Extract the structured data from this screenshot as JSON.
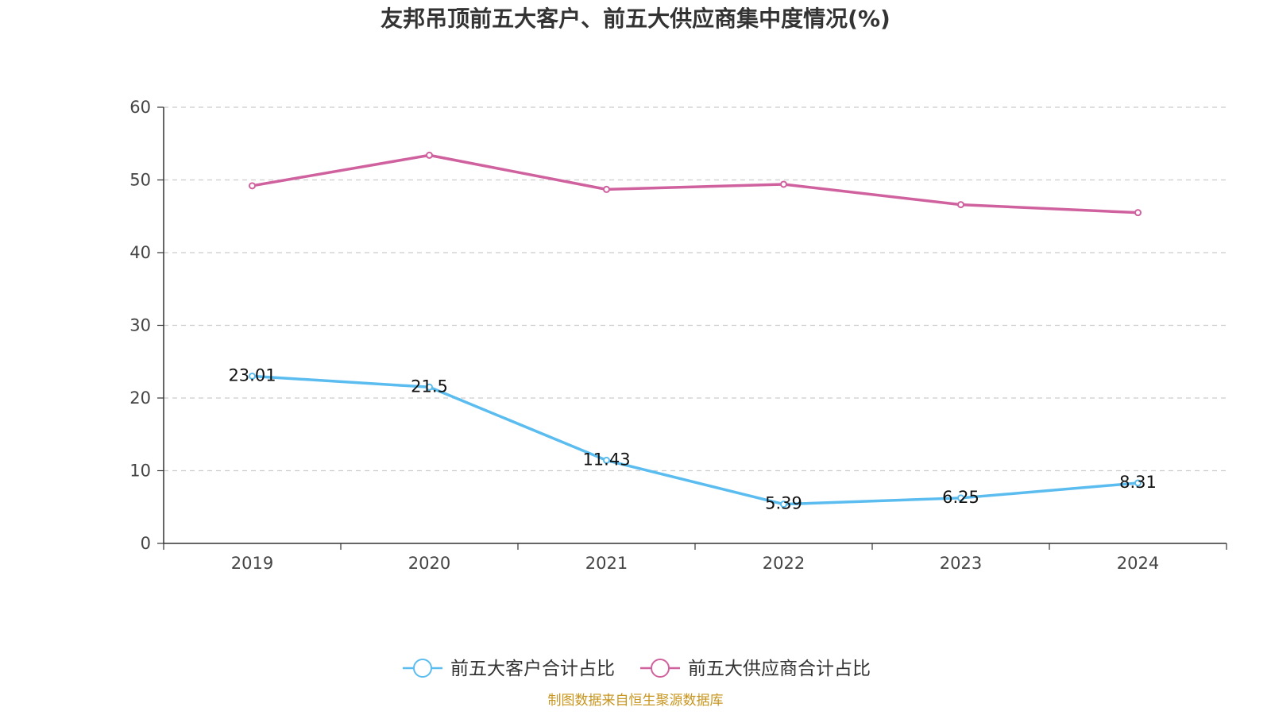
{
  "chart_data": {
    "type": "line",
    "title": "友邦吊顶前五大客户、前五大供应商集中度情况(%)",
    "categories": [
      "2019",
      "2020",
      "2021",
      "2022",
      "2023",
      "2024"
    ],
    "ylim": [
      0,
      60
    ],
    "yticks": [
      0,
      10,
      20,
      30,
      40,
      50,
      60
    ],
    "grid": true,
    "legend_position": "bottom",
    "series": [
      {
        "name": "前五大客户合计占比",
        "color": "#5bbcf0",
        "values": [
          23.01,
          21.5,
          11.43,
          5.39,
          6.25,
          8.31
        ],
        "labels": [
          "23.01",
          "21.5",
          "11.43",
          "5.39",
          "6.25",
          "8.31"
        ],
        "show_labels": true
      },
      {
        "name": "前五大供应商合计占比",
        "color": "#d0619f",
        "values": [
          49.2,
          53.4,
          48.7,
          49.4,
          46.6,
          45.5
        ],
        "labels": [],
        "show_labels": false
      }
    ],
    "source": "制图数据来自恒生聚源数据库"
  }
}
